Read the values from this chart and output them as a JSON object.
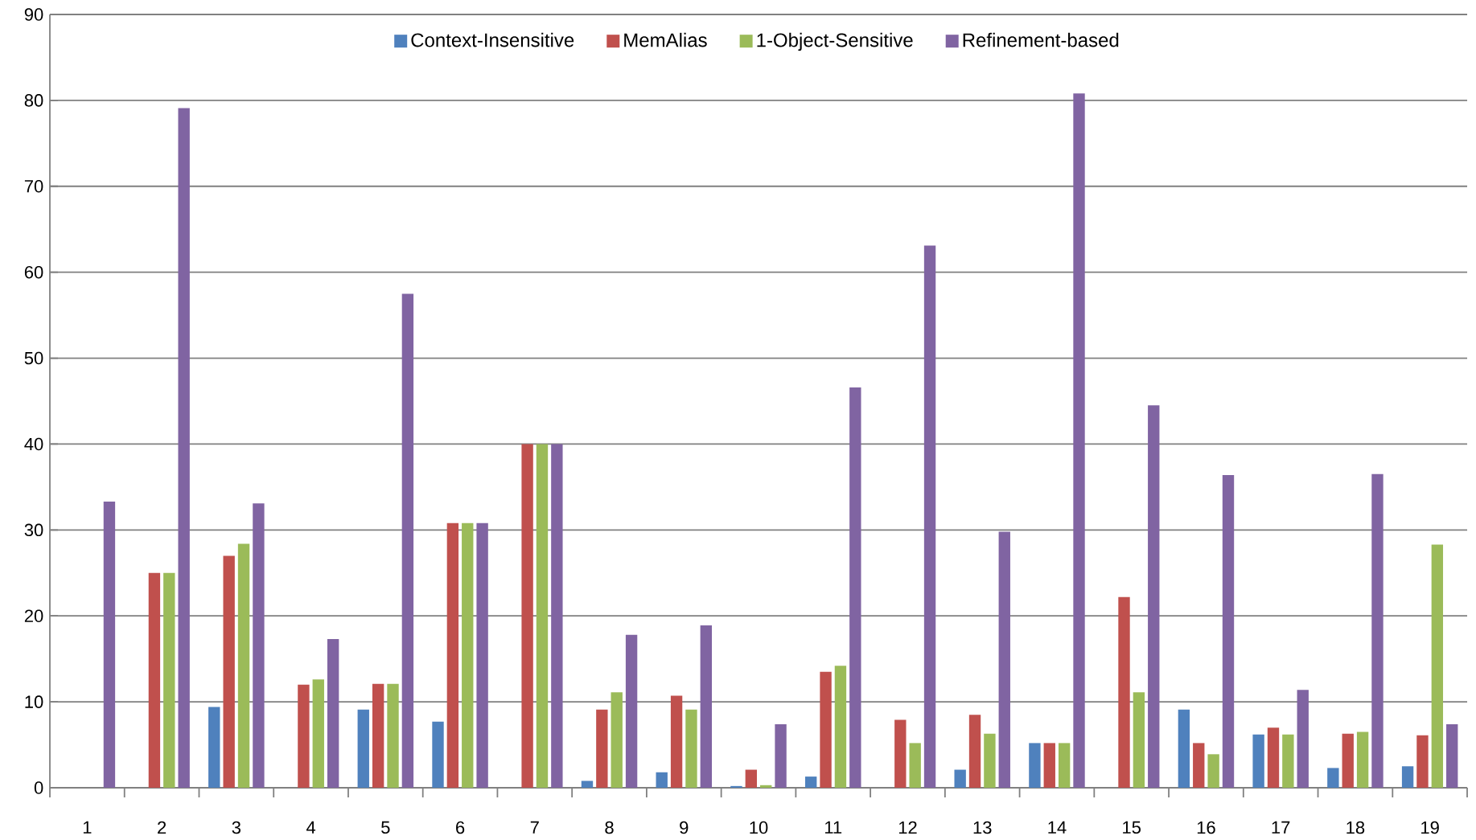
{
  "chart_data": {
    "type": "bar",
    "categories": [
      "1",
      "2",
      "3",
      "4",
      "5",
      "6",
      "7",
      "8",
      "9",
      "10",
      "11",
      "12",
      "13",
      "14",
      "15",
      "16",
      "17",
      "18",
      "19"
    ],
    "series": [
      {
        "name": "Context-Insensitive",
        "color": "#4f81bd",
        "values": [
          null,
          null,
          9.4,
          null,
          9.1,
          7.7,
          null,
          0.8,
          1.8,
          0.2,
          1.3,
          null,
          2.1,
          5.2,
          null,
          9.1,
          6.2,
          2.3,
          2.5
        ]
      },
      {
        "name": "MemAlias",
        "color": "#c0504d",
        "values": [
          null,
          25,
          27,
          12,
          12.1,
          30.8,
          40,
          9.1,
          10.7,
          2.1,
          13.5,
          7.9,
          8.5,
          5.2,
          22.2,
          5.2,
          7.0,
          6.3,
          6.1
        ]
      },
      {
        "name": "1-Object-Sensitive",
        "color": "#9bbb59",
        "values": [
          null,
          25,
          28.4,
          12.6,
          12.1,
          30.8,
          40,
          11.1,
          9.1,
          0.3,
          14.2,
          5.2,
          6.3,
          5.2,
          11.1,
          3.9,
          6.2,
          6.5,
          28.3
        ]
      },
      {
        "name": "Refinement-based",
        "color": "#8064a2",
        "values": [
          33.3,
          79.1,
          33.1,
          17.3,
          57.5,
          30.8,
          40,
          17.8,
          18.9,
          7.4,
          46.6,
          63.1,
          29.8,
          80.8,
          44.5,
          36.4,
          11.4,
          36.5,
          7.4
        ]
      }
    ],
    "ylim": [
      0,
      90
    ],
    "yticks": [
      0,
      10,
      20,
      30,
      40,
      50,
      60,
      70,
      80,
      90
    ],
    "grid": "y",
    "legend": "top"
  }
}
